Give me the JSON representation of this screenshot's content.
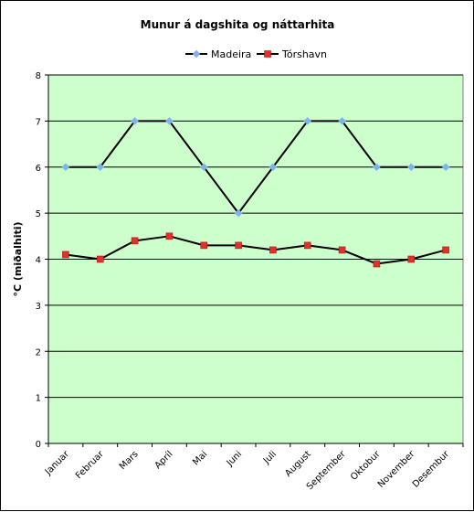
{
  "chart_data": {
    "type": "line",
    "title": "Munur á dagshita og náttarhita",
    "xlabel": "",
    "ylabel": "°C (miðalhiti)",
    "categories": [
      "Januar",
      "Februar",
      "Mars",
      "Apríl",
      "Mai",
      "Juni",
      "Juli",
      "August",
      "September",
      "Oktobur",
      "November",
      "Desembur"
    ],
    "ylim": [
      0,
      8
    ],
    "yticks": [
      "0",
      "1",
      "2",
      "3",
      "4",
      "5",
      "6",
      "7",
      "8"
    ],
    "grid": true,
    "legend_position": "top",
    "plot_background": "#ccffcc",
    "series": [
      {
        "name": "Madeira",
        "values": [
          6,
          6,
          7,
          7,
          6,
          5,
          6,
          7,
          7,
          6,
          6,
          6
        ],
        "line_color": "#000000",
        "marker_color": "#7fb2f0",
        "marker": "diamond"
      },
      {
        "name": "Tórshavn",
        "values": [
          4.1,
          4.0,
          4.4,
          4.5,
          4.3,
          4.3,
          4.2,
          4.3,
          4.2,
          3.9,
          4.0,
          4.2
        ],
        "line_color": "#000000",
        "marker_color": "#e0312b",
        "marker": "square"
      }
    ]
  }
}
